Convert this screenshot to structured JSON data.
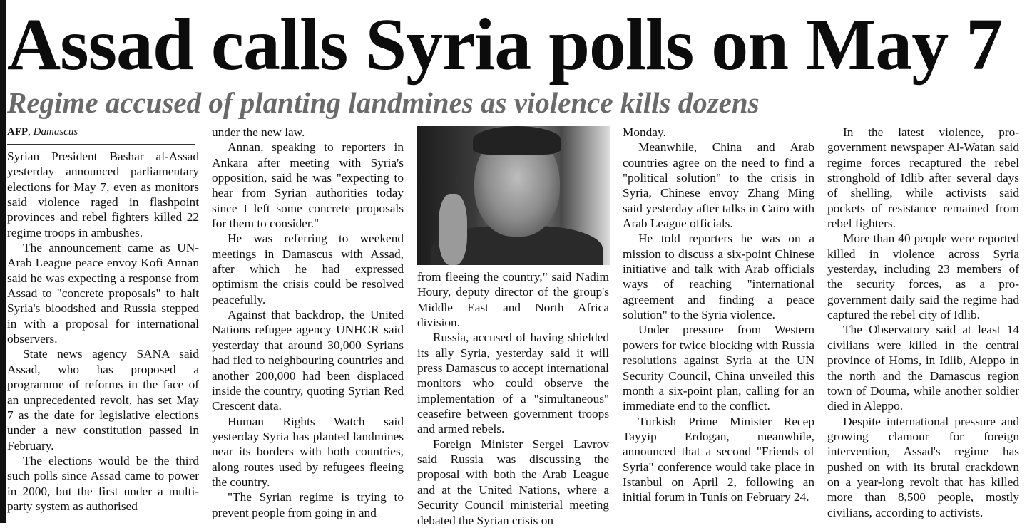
{
  "headline": "Assad calls Syria polls on May 7",
  "subheadline": "Regime accused of planting landmines as violence kills dozens",
  "byline": {
    "agency": "AFP",
    "place": "Damascus"
  },
  "photo": {
    "alt": "Bashar al-Assad portrait"
  },
  "columns": [
    {
      "paragraphs": [
        "Syrian President Bashar al-Assad yesterday announced parliamentary elections for May 7, even as monitors said violence raged in flashpoint provinces and rebel fighters killed 22 regime troops in ambushes.",
        "The announcement came as UN-Arab League peace envoy Kofi Annan said he was expecting a response from Assad to \"concrete proposals\" to halt Syria's bloodshed and Russia stepped in with a proposal for international observers.",
        "State news agency SANA said Assad, who has proposed a programme of reforms in the face of an unprecedented revolt, has set May 7 as the date for legislative elections under a new constitution passed in February.",
        "The elections would be the third such polls since Assad came to power in 2000, but the first under a multi-party system as authorised"
      ]
    },
    {
      "paragraphs": [
        "under the new law.",
        "Annan, speaking to reporters in Ankara after meeting with Syria's opposition, said he was \"expecting to hear from Syrian authorities today since I left some concrete proposals for them to consider.\"",
        "He was referring to weekend meetings in Damascus with Assad, after which he had expressed optimism the crisis could be resolved peacefully.",
        "Against that backdrop, the United Nations refugee agency UNHCR said yesterday that around 30,000 Syrians had fled to neighbouring countries and another 200,000 had been displaced inside the country, quoting Syrian Red Crescent data.",
        "Human Rights Watch said yesterday Syria has planted landmines near its borders with both countries, along routes used by refugees fleeing the country.",
        "\"The Syrian regime is trying to prevent people from going in and"
      ]
    },
    {
      "paragraphs": [
        "from fleeing the country,\" said Nadim Houry, deputy director of the group's Middle East and North Africa division.",
        "Russia, accused of having shielded its ally Syria, yesterday said it will press Damascus to accept international monitors who could observe the implementation of a \"simultaneous\" ceasefire between government troops and armed rebels.",
        "Foreign Minister Sergei Lavrov said Russia was discussing the proposal with both the Arab League and at the United Nations, where a Security Council ministerial meeting debated the Syrian crisis on"
      ]
    },
    {
      "paragraphs": [
        "Monday.",
        "Meanwhile, China and Arab countries agree on the need to find a \"political solution\" to the crisis in Syria, Chinese envoy Zhang Ming said yesterday after talks in Cairo with Arab League officials.",
        "He told reporters he was on a mission to discuss a six-point Chinese initiative and talk with Arab officials ways of reaching \"international agreement and finding a peace solution\" to the Syria violence.",
        "Under pressure from Western powers for twice blocking with Russia resolutions against Syria at the UN Security Council, China unveiled this month a six-point plan, calling for an immediate end to the conflict.",
        "Turkish Prime Minister Recep Tayyip Erdogan, meanwhile, announced that a second \"Friends of Syria\" conference would take place in Istanbul on April 2, following an initial forum in Tunis on February 24."
      ]
    },
    {
      "paragraphs": [
        "In the latest violence, pro-government newspaper Al-Watan said regime forces recaptured the rebel stronghold of Idlib after several days of shelling, while activists said pockets of resistance remained from rebel fighters.",
        "More than 40 people were reported killed in violence across Syria yesterday, including 23 members of the security forces, as a pro-government daily said the regime had captured the rebel city of Idlib.",
        "The Observatory said at least 14 civilians were killed in the central province of Homs, in Idlib, Aleppo in the north and the Damascus region town of Douma, while another soldier died in Aleppo.",
        "Despite international pressure and growing clamour for foreign intervention, Assad's regime has pushed on with its brutal crackdown on a year-long revolt that has killed more than 8,500 people, mostly civilians, according to activists."
      ]
    }
  ]
}
